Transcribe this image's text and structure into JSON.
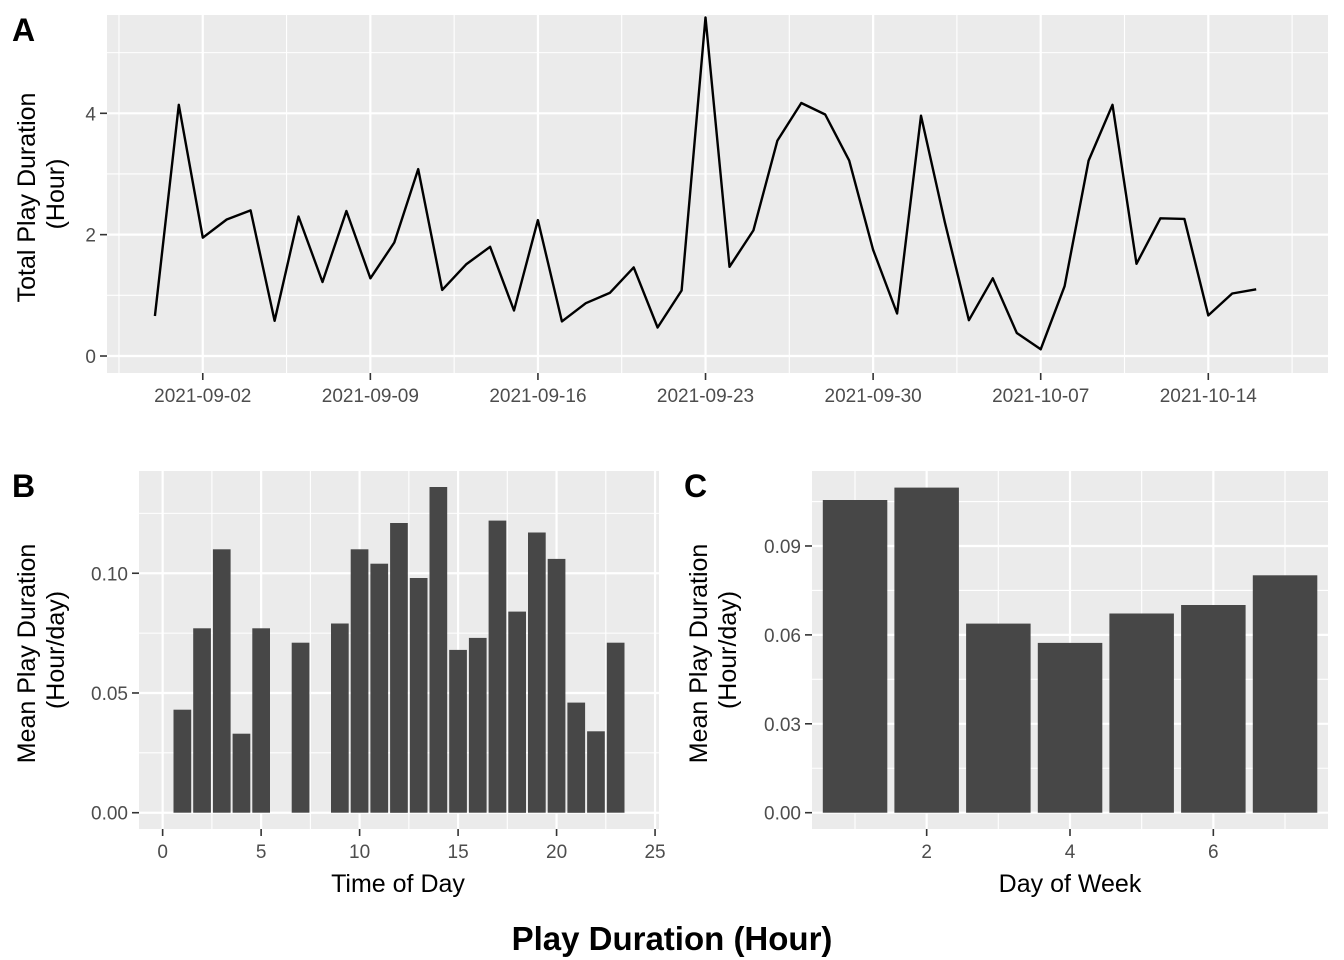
{
  "figure_title": "Play Duration (Hour)",
  "chart_data": [
    {
      "panel": "A",
      "type": "line",
      "xlabel": "",
      "ylabel": [
        "Total Play Duration",
        "(Hour)"
      ],
      "xlim": [
        "2021-08-29",
        "2021-10-19"
      ],
      "ylim": [
        -0.28,
        5.62
      ],
      "x_ticks": [
        "2021-09-02",
        "2021-09-09",
        "2021-09-16",
        "2021-09-23",
        "2021-09-30",
        "2021-10-07",
        "2021-10-14"
      ],
      "y_ticks": [
        0,
        2,
        4
      ],
      "grid": true,
      "x": [
        "2021-08-31",
        "2021-09-01",
        "2021-09-02",
        "2021-09-03",
        "2021-09-04",
        "2021-09-05",
        "2021-09-06",
        "2021-09-07",
        "2021-09-08",
        "2021-09-09",
        "2021-09-10",
        "2021-09-11",
        "2021-09-12",
        "2021-09-13",
        "2021-09-14",
        "2021-09-15",
        "2021-09-16",
        "2021-09-17",
        "2021-09-18",
        "2021-09-19",
        "2021-09-20",
        "2021-09-21",
        "2021-09-22",
        "2021-09-23",
        "2021-09-24",
        "2021-09-25",
        "2021-09-26",
        "2021-09-27",
        "2021-09-28",
        "2021-09-29",
        "2021-09-30",
        "2021-10-01",
        "2021-10-02",
        "2021-10-03",
        "2021-10-04",
        "2021-10-05",
        "2021-10-06",
        "2021-10-07",
        "2021-10-08",
        "2021-10-09",
        "2021-10-10",
        "2021-10-11",
        "2021-10-12",
        "2021-10-13",
        "2021-10-14",
        "2021-10-15",
        "2021-10-16"
      ],
      "values": [
        0.66,
        4.14,
        1.95,
        2.25,
        2.4,
        0.58,
        2.3,
        1.22,
        2.39,
        1.28,
        1.87,
        3.08,
        1.09,
        1.51,
        1.8,
        0.75,
        2.24,
        0.57,
        0.87,
        1.04,
        1.46,
        0.47,
        1.08,
        5.58,
        1.47,
        2.07,
        3.55,
        4.17,
        3.98,
        3.22,
        1.75,
        0.7,
        3.96,
        2.2,
        0.59,
        1.28,
        0.38,
        0.11,
        1.15,
        3.22,
        4.14,
        1.52,
        2.27,
        2.26,
        0.67,
        1.03,
        1.1
      ]
    },
    {
      "panel": "B",
      "type": "bar",
      "xlabel": "Time of Day",
      "ylabel": [
        "Mean Play Duration",
        "(Hour/day)"
      ],
      "xlim": [
        -1.2,
        25.2
      ],
      "ylim": [
        -0.0068,
        0.1427
      ],
      "x_ticks": [
        0,
        5,
        10,
        15,
        20,
        25
      ],
      "y_ticks": [
        "0.00",
        "0.05",
        "0.10"
      ],
      "grid": true,
      "categories": [
        1,
        2,
        3,
        4,
        5,
        7,
        9,
        10,
        11,
        12,
        13,
        14,
        15,
        16,
        17,
        18,
        19,
        20,
        21,
        22,
        23
      ],
      "values": [
        0.043,
        0.077,
        0.11,
        0.033,
        0.077,
        0.071,
        0.079,
        0.11,
        0.104,
        0.121,
        0.098,
        0.136,
        0.068,
        0.073,
        0.122,
        0.084,
        0.117,
        0.106,
        0.046,
        0.034,
        0.071
      ]
    },
    {
      "panel": "C",
      "type": "bar",
      "xlabel": "Day of Week",
      "ylabel": [
        "Mean Play Duration",
        "(Hour/day)"
      ],
      "xlim": [
        0.4,
        7.6
      ],
      "ylim": [
        -0.0055,
        0.1153
      ],
      "x_ticks": [
        2,
        4,
        6
      ],
      "y_ticks": [
        "0.00",
        "0.03",
        "0.06",
        "0.09"
      ],
      "grid": true,
      "categories": [
        1,
        2,
        3,
        4,
        5,
        6,
        7
      ],
      "values": [
        0.1055,
        0.1097,
        0.0638,
        0.0573,
        0.0672,
        0.0701,
        0.0801
      ]
    }
  ]
}
